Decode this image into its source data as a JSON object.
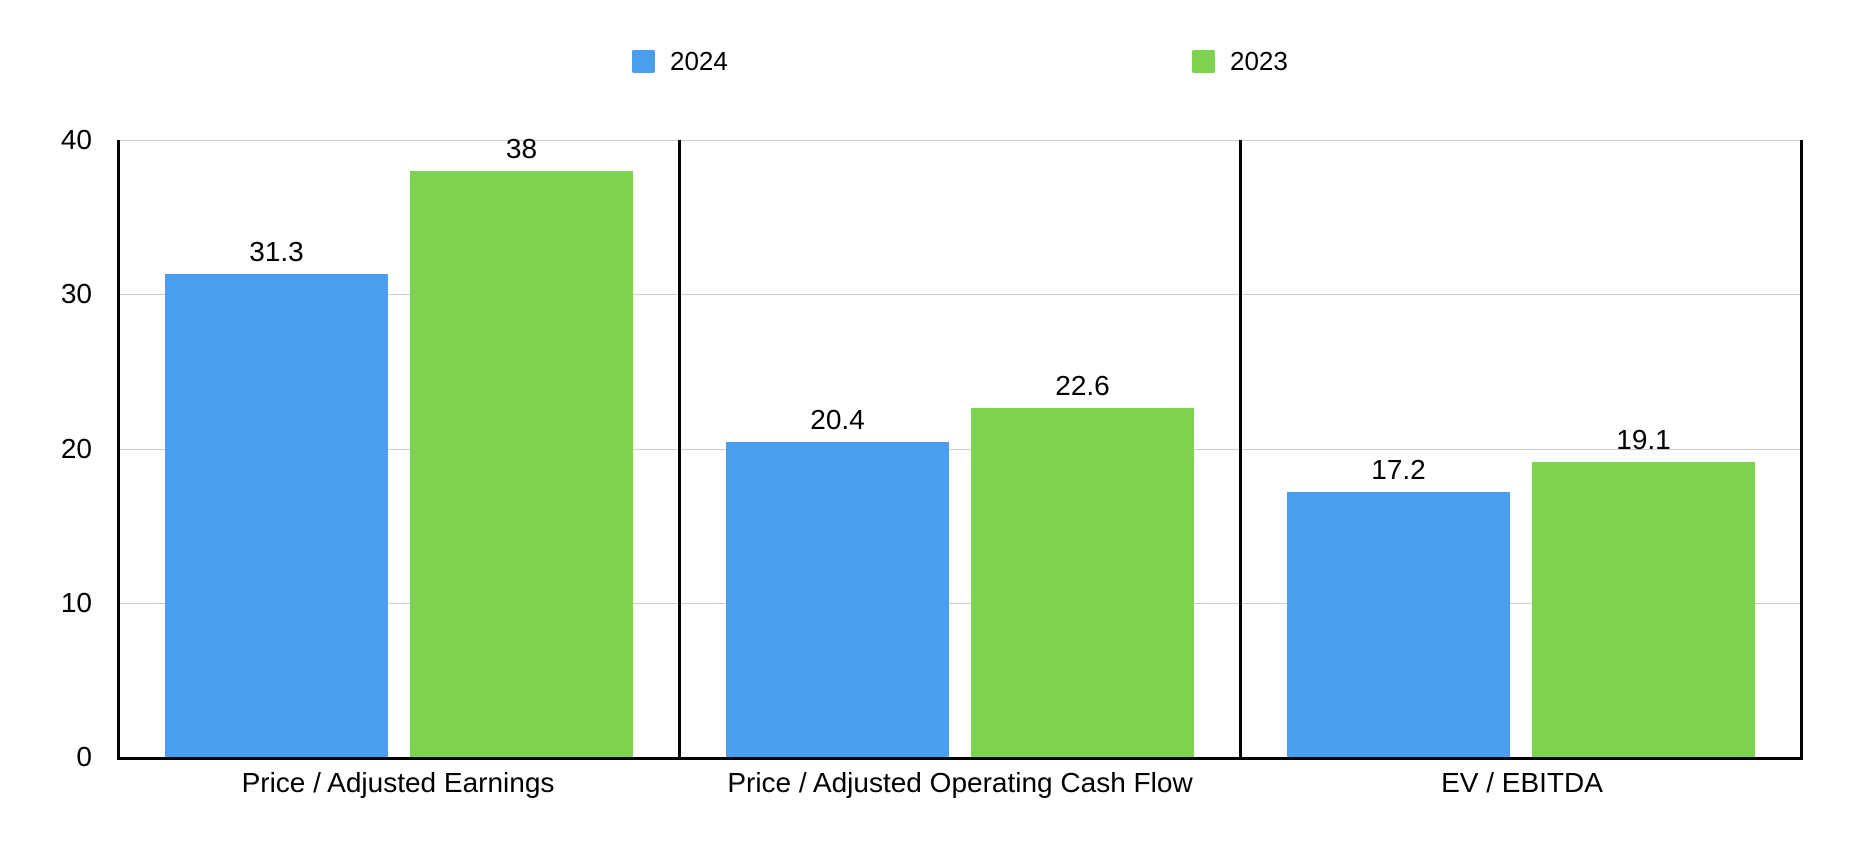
{
  "legend": {
    "items": [
      {
        "label": "2024",
        "color": "#4A9EF0"
      },
      {
        "label": "2023",
        "color": "#7DD34D"
      }
    ]
  },
  "chart_data": {
    "type": "bar",
    "title": "",
    "categories": [
      "Price / Adjusted Earnings",
      "Price / Adjusted Operating Cash Flow",
      "EV / EBITDA"
    ],
    "series": [
      {
        "name": "2024",
        "color": "#4A9EF0",
        "values": [
          31.3,
          20.4,
          17.2
        ],
        "labels": [
          "31.3",
          "20.4",
          "17.2"
        ]
      },
      {
        "name": "2023",
        "color": "#7DD34D",
        "values": [
          38,
          22.6,
          19.1
        ],
        "labels": [
          "38",
          "22.6",
          "19.1"
        ]
      }
    ],
    "ylim": [
      0,
      40
    ],
    "yticks": [
      0,
      10,
      20,
      30,
      40
    ],
    "grid": true,
    "gridline_color": "#cccccc",
    "legend_position": "top",
    "xlabel": "",
    "ylabel": ""
  }
}
